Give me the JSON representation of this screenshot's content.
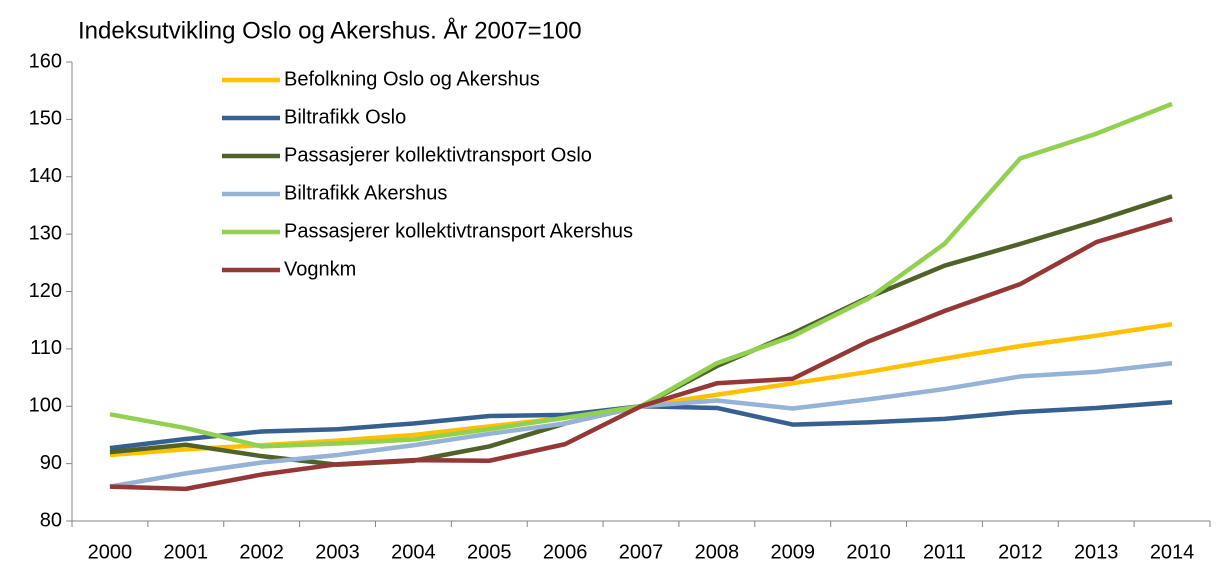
{
  "chart_data": {
    "type": "line",
    "title": "Indeksutvikling Oslo og Akershus. År 2007=100",
    "categories": [
      "2000",
      "2001",
      "2002",
      "2003",
      "2004",
      "2005",
      "2006",
      "2007",
      "2008",
      "2009",
      "2010",
      "2011",
      "2012",
      "2013",
      "2014"
    ],
    "series": [
      {
        "name": "Befolkning Oslo og Akershus",
        "color": "#ffc000",
        "values": [
          91.5,
          92.5,
          93.2,
          94,
          95,
          96.5,
          98,
          100,
          102,
          104,
          106,
          108.3,
          110.5,
          112.3,
          114.3
        ]
      },
      {
        "name": "Biltrafikk Oslo",
        "color": "#376092",
        "values": [
          92.7,
          94.3,
          95.6,
          96,
          97,
          98.3,
          98.5,
          100,
          99.7,
          96.8,
          97.2,
          97.8,
          99,
          99.7,
          100.7
        ]
      },
      {
        "name": "Passasjerer kollektivtransport Oslo",
        "color": "#4f6228",
        "values": [
          92,
          93.3,
          91.3,
          89.8,
          90.5,
          93,
          97,
          100,
          107,
          112.7,
          119,
          124.5,
          128.3,
          132.3,
          136.6
        ]
      },
      {
        "name": "Biltrafikk Akershus",
        "color": "#95b3d7",
        "values": [
          86,
          88.3,
          90.2,
          91.5,
          93.2,
          95.2,
          97,
          100,
          101,
          99.6,
          101.2,
          103,
          105.2,
          106,
          107.5
        ]
      },
      {
        "name": "Passasjerer kollektivtransport Akershus",
        "color": "#92d050",
        "values": [
          98.6,
          96.2,
          93,
          93.5,
          94.2,
          96,
          98,
          100,
          107.5,
          112.2,
          118.8,
          128.3,
          143.2,
          147.5,
          152.7
        ]
      },
      {
        "name": "Vognkm",
        "color": "#953735",
        "values": [
          86,
          85.6,
          88.1,
          89.9,
          90.6,
          90.5,
          93.4,
          100,
          104,
          104.8,
          111.3,
          116.6,
          121.3,
          128.6,
          132.6
        ]
      }
    ],
    "ylim": [
      80,
      160
    ],
    "yticks": [
      80,
      90,
      100,
      110,
      120,
      130,
      140,
      150,
      160
    ],
    "grid": false,
    "legend": "top-left"
  }
}
